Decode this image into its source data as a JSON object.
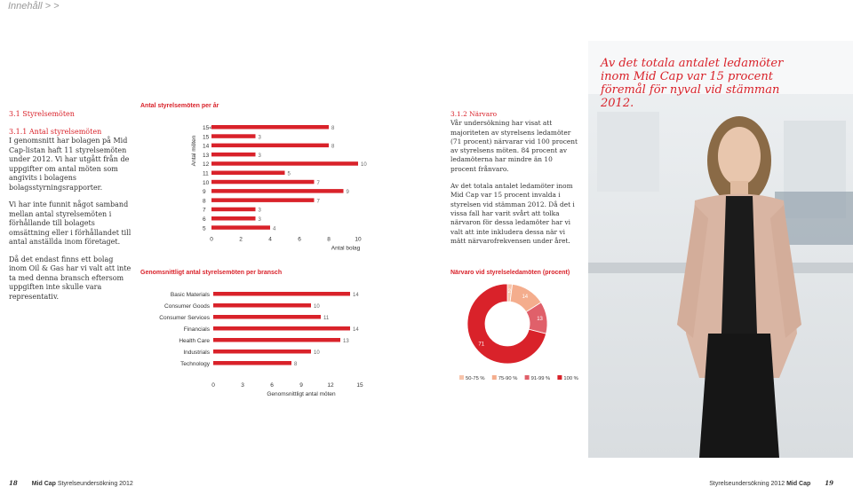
{
  "nav": {
    "breadcrumb": "Innehåll > >"
  },
  "left": {
    "section_heading": "3.1  Styrelsemöten",
    "subheading": "3.1.1  Antal styrelsemöten",
    "p1": "I genomsnitt har bolagen på Mid Cap-listan haft 11 styrelsemöten under 2012. Vi har utgått från de uppgifter om antal möten som angivits i bolagens bolagsstyrningsrapporter.",
    "p2": "Vi har inte funnit något samband mellan antal styrelsemöten i förhållande till bolagets omsättning eller i förhållandet till antal anställda inom företaget.",
    "p3": "Då det endast finns ett bolag inom Oil & Gas har vi valt att inte ta med denna bransch eftersom uppgiften inte skulle vara representativ."
  },
  "mid": {
    "subheading": "3.1.2  Närvaro",
    "p1": "Vår undersökning har visat att majoriteten av styrelsens ledamöter (71 procent) närvarar vid 100 procent av styrelsens möten. 84 procent av ledamöterna har mindre än 10 procent frånvaro.",
    "p2": "Av det totala antalet ledamöter inom Mid Cap var 15 procent invalda i styrelsen vid stämman 2012. Då det i vissa fall har varit svårt att tolka närvaron för dessa ledamöter har vi valt att inte inkludera dessa när vi mätt närvarofrekvensen under året."
  },
  "quote": "Av det totala antalet ledamöter inom Mid Cap var 15 procent föremål för nyval vid stämman 2012.",
  "footer": {
    "left_page": "18",
    "left_brand": "Mid Cap",
    "left_title": "Styrelseundersökning 2012",
    "right_title": "Styrelseundersökning 2012",
    "right_brand": "Mid Cap",
    "right_page": "19"
  },
  "colors": {
    "accent": "#d9222a",
    "light1": "#f4ad8d",
    "light2": "#e0606a"
  },
  "chart_data": [
    {
      "type": "bar",
      "orientation": "horizontal",
      "title": "Antal styrelsemöten per år",
      "ylabel": "Antal möten",
      "xlabel": "Antal bolag",
      "categories": [
        "15<",
        "15",
        "14",
        "13",
        "12",
        "11",
        "10",
        "9",
        "8",
        "7",
        "6",
        "5"
      ],
      "values": [
        8,
        3,
        8,
        3,
        10,
        5,
        7,
        9,
        7,
        3,
        3,
        4
      ],
      "xlim": [
        0,
        10
      ],
      "xticks": [
        0,
        2,
        4,
        6,
        8,
        10
      ]
    },
    {
      "type": "bar",
      "orientation": "horizontal",
      "title": "Genomsnittligt antal styrelsemöten per bransch",
      "xlabel": "Genomsnittligt antal möten",
      "categories": [
        "Basic Materials",
        "Consumer Goods",
        "Consumer Services",
        "Financials",
        "Health Care",
        "Industrials",
        "Technology"
      ],
      "values": [
        14,
        10,
        11,
        14,
        13,
        10,
        8
      ],
      "xlim": [
        0,
        15
      ],
      "xticks": [
        0,
        3,
        6,
        9,
        12,
        15
      ]
    },
    {
      "type": "pie",
      "title": "Närvaro vid styrelseledamöten (procent)",
      "categories": [
        "50-75 %",
        "75-90 %",
        "91-99 %",
        "100 %"
      ],
      "values": [
        2,
        14,
        13,
        71
      ],
      "colors": [
        "#f7c4ab",
        "#f4ad8d",
        "#e0606a",
        "#d9222a"
      ]
    }
  ]
}
